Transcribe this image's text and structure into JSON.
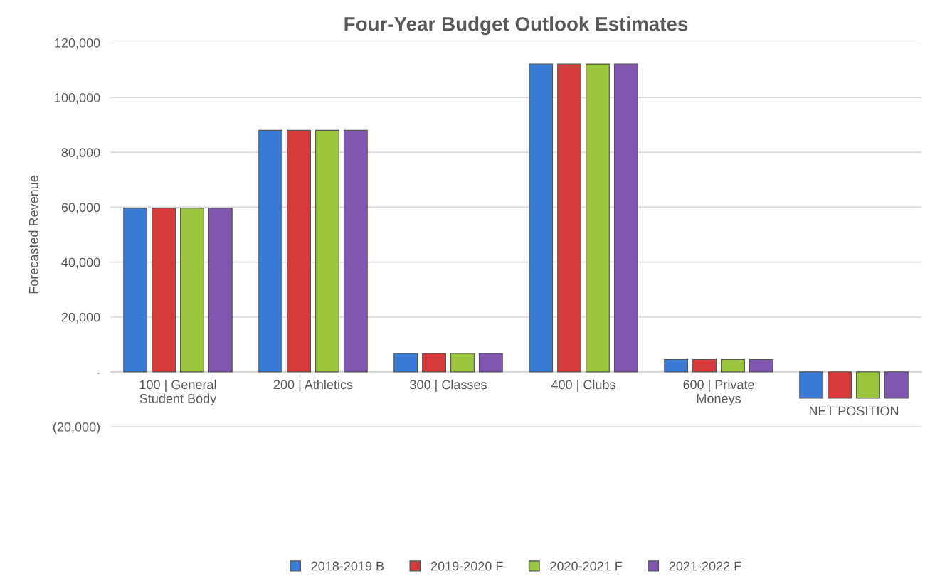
{
  "chart_data": {
    "type": "bar",
    "title": "Four-Year Budget Outlook Estimates",
    "ylabel": "Forecasted Revenue",
    "categories": [
      "100 | General\nStudent Body",
      "200 | Athletics",
      "300 | Classes",
      "400 | Clubs",
      "600 | Private\nMoneys",
      "NET POSITION"
    ],
    "series": [
      {
        "name": "2018-2019 B",
        "color": "#3a7bd5",
        "values": [
          59700,
          88000,
          6700,
          112200,
          4500,
          -9600
        ]
      },
      {
        "name": "2019-2020 F",
        "color": "#d63b3b",
        "values": [
          59700,
          88000,
          6700,
          112200,
          4500,
          -9600
        ]
      },
      {
        "name": "2020-2021 F",
        "color": "#9bc53d",
        "values": [
          59700,
          88000,
          6700,
          112200,
          4500,
          -9600
        ]
      },
      {
        "name": "2021-2022 F",
        "color": "#7f56b0",
        "values": [
          59700,
          88000,
          6700,
          112200,
          4500,
          -9600
        ]
      }
    ],
    "ylim": [
      -20000,
      120000
    ],
    "yticks": [
      {
        "value": -20000,
        "label": "(20,000)"
      },
      {
        "value": 0,
        "label": "-"
      },
      {
        "value": 20000,
        "label": "20,000"
      },
      {
        "value": 40000,
        "label": "40,000"
      },
      {
        "value": 60000,
        "label": "60,000"
      },
      {
        "value": 80000,
        "label": "80,000"
      },
      {
        "value": 100000,
        "label": "100,000"
      },
      {
        "value": 120000,
        "label": "120,000"
      }
    ],
    "grid": "y",
    "legend": "bottom"
  }
}
